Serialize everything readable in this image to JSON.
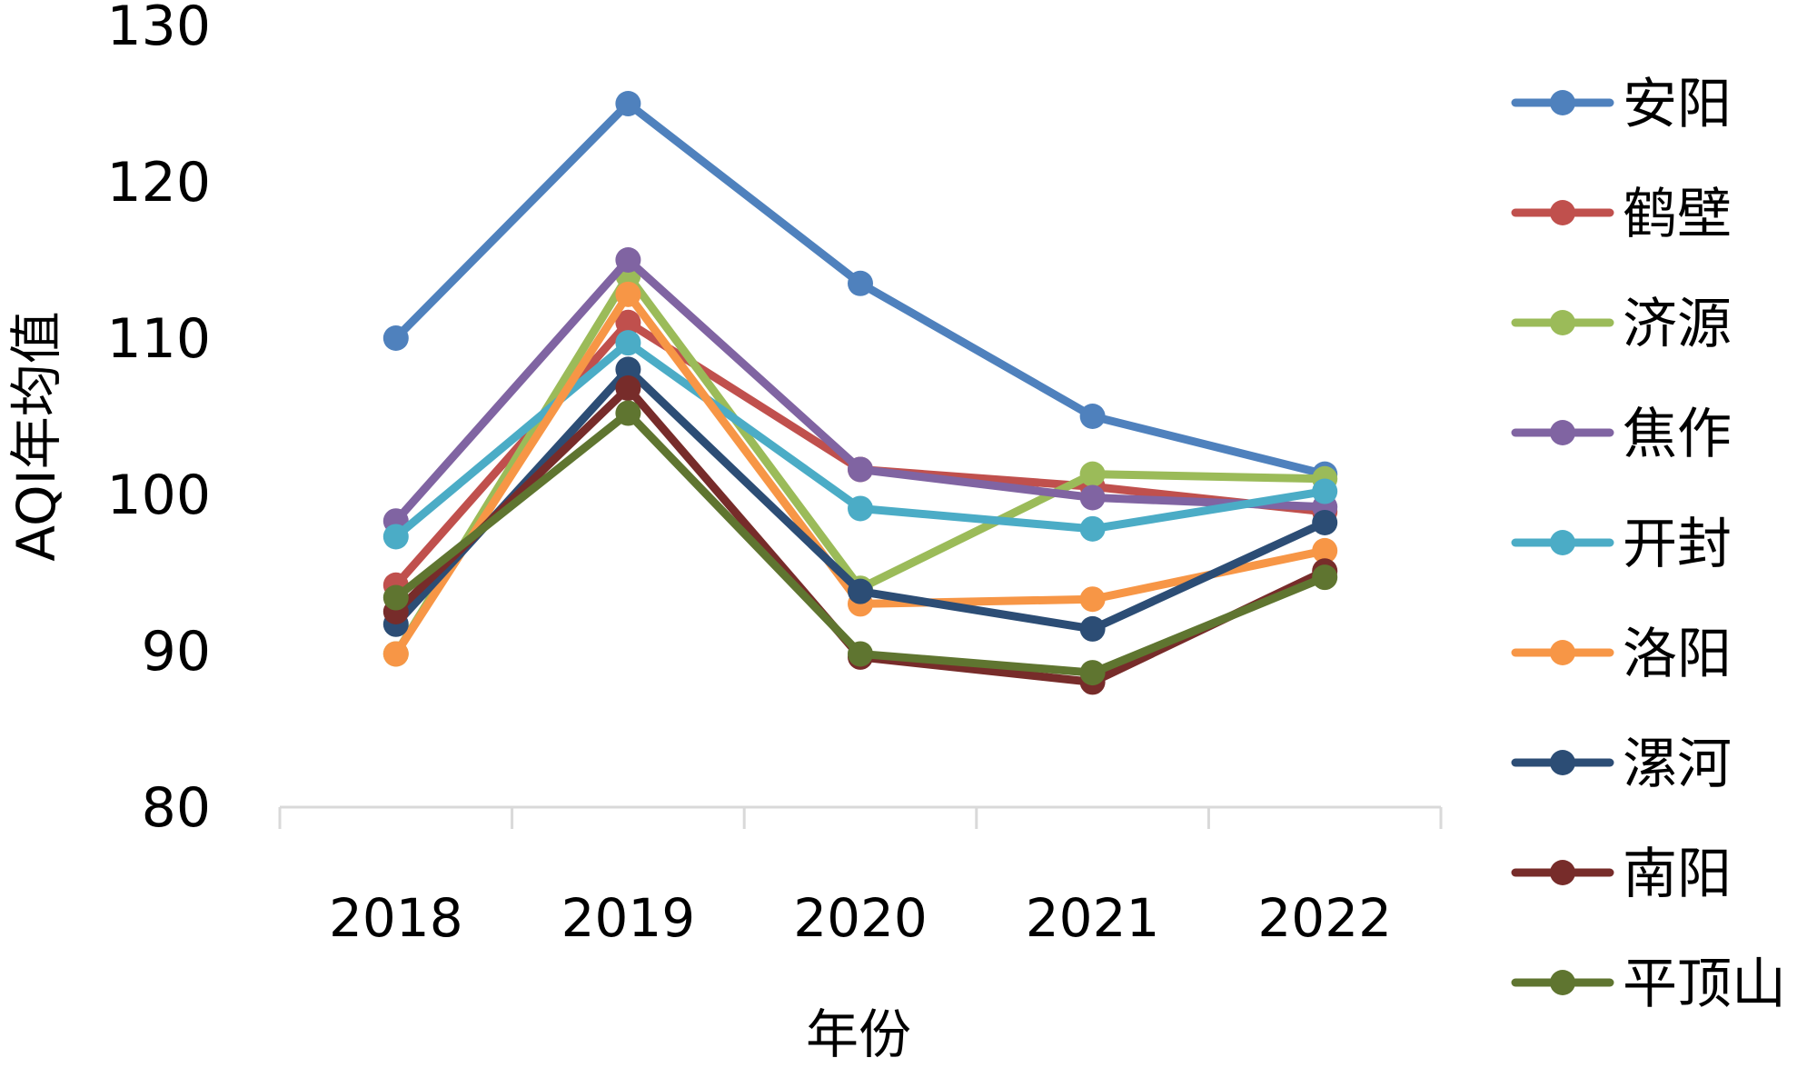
{
  "chart_data": {
    "type": "line",
    "title": "",
    "xlabel": "年份",
    "ylabel": "AQI年均值",
    "ylim": [
      80,
      130
    ],
    "yticks": [
      80,
      90,
      100,
      110,
      120,
      130
    ],
    "categories": [
      "2018",
      "2019",
      "2020",
      "2021",
      "2022"
    ],
    "grid": false,
    "legend": "right",
    "series": [
      {
        "name": "安阳",
        "color": "#4F81BD",
        "values": [
          110,
          125,
          113.5,
          105,
          101.3
        ]
      },
      {
        "name": "鹤壁",
        "color": "#C0504D",
        "values": [
          94.2,
          111,
          101.6,
          100.5,
          98.9
        ]
      },
      {
        "name": "济源",
        "color": "#9BBB59",
        "values": [
          89.8,
          114,
          94,
          101.3,
          101
        ]
      },
      {
        "name": "焦作",
        "color": "#8064A2",
        "values": [
          98.3,
          115,
          101.6,
          99.8,
          99.2
        ]
      },
      {
        "name": "开封",
        "color": "#4BACC6",
        "values": [
          97.3,
          109.7,
          99.1,
          97.8,
          100.2
        ]
      },
      {
        "name": "洛阳",
        "color": "#F79646",
        "values": [
          89.8,
          112.8,
          93,
          93.3,
          96.4
        ]
      },
      {
        "name": "漯河",
        "color": "#2C4D75",
        "values": [
          91.7,
          108,
          93.8,
          91.4,
          98.2
        ]
      },
      {
        "name": "南阳",
        "color": "#772C2A",
        "values": [
          92.5,
          106.8,
          89.6,
          88,
          95.1
        ]
      },
      {
        "name": "平顶山",
        "color": "#5F7530",
        "values": [
          93.4,
          105.2,
          89.8,
          88.6,
          94.7
        ]
      }
    ]
  }
}
